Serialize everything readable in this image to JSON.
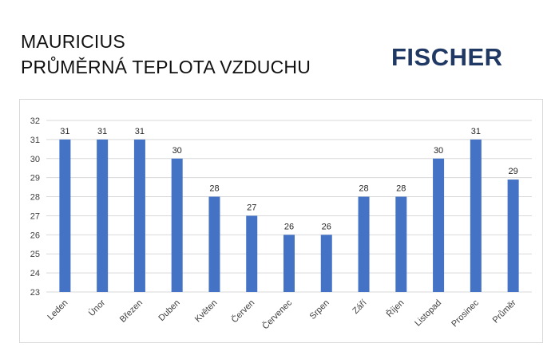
{
  "header": {
    "title_line1": "MAURICIUS",
    "title_line2": "PRŮMĚRNÁ TEPLOTA VZDUCHU",
    "brand": "FISCHER"
  },
  "colors": {
    "bar": "#4472c4",
    "brand": "#1f3864",
    "grid": "#d9d9d9"
  },
  "chart_data": {
    "type": "bar",
    "title": "MAURICIUS PRŮMĚRNÁ TEPLOTA VZDUCHU",
    "categories": [
      "Leden",
      "Únor",
      "Březen",
      "Duben",
      "Květen",
      "Červen",
      "Červenec",
      "Srpen",
      "Září",
      "Říjen",
      "Listopad",
      "Prosinec",
      "Průměr"
    ],
    "values": [
      31,
      31,
      31,
      30,
      28,
      27,
      26,
      26,
      28,
      28,
      30,
      31,
      28.9
    ],
    "data_labels": [
      "31",
      "31",
      "31",
      "30",
      "28",
      "27",
      "26",
      "26",
      "28",
      "28",
      "30",
      "31",
      "29"
    ],
    "yticks": [
      "23",
      "24",
      "25",
      "26",
      "27",
      "28",
      "29",
      "30",
      "31",
      "32"
    ],
    "xlabel": "",
    "ylabel": "",
    "ylim": [
      23,
      32
    ],
    "grid": true,
    "legend": "none"
  }
}
